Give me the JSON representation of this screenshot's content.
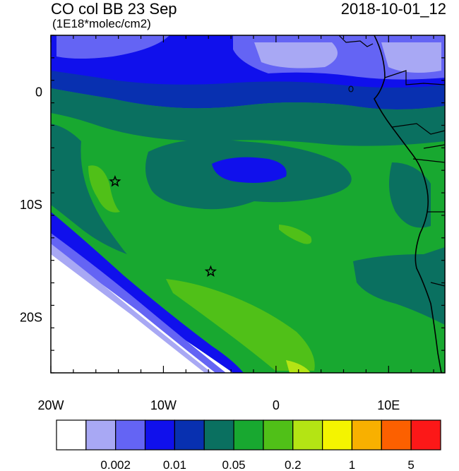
{
  "header": {
    "title": "CO col BB 23 Sep",
    "units": "(1E18*molec/cm2)",
    "timestamp": "2018-10-01_12"
  },
  "map": {
    "lon_range": [
      -20,
      15
    ],
    "lat_range": [
      -25,
      5
    ],
    "x_ticks": [
      {
        "lon": -20,
        "label": "20W"
      },
      {
        "lon": -10,
        "label": "10W"
      },
      {
        "lon": 0,
        "label": "0"
      },
      {
        "lon": 10,
        "label": "10E"
      }
    ],
    "y_ticks": [
      {
        "lat": 0,
        "label": "0"
      },
      {
        "lat": -10,
        "label": "10S"
      },
      {
        "lat": -20,
        "label": "20S"
      }
    ],
    "markers": [
      {
        "type": "star",
        "lon": -14.3,
        "lat": -8.0
      },
      {
        "type": "star",
        "lon": -5.8,
        "lat": -16.0
      }
    ]
  },
  "colorbar": {
    "colors": [
      "#ffffff",
      "#a8a8f4",
      "#6464f4",
      "#1010ec",
      "#0830b0",
      "#0a7060",
      "#18a830",
      "#50c018",
      "#b4e414",
      "#f4f400",
      "#f8b000",
      "#fc6000",
      "#fc1818"
    ],
    "labels": [
      "0.002",
      "0.01",
      "0.05",
      "0.2",
      "1",
      "5"
    ]
  },
  "legend_colors": {
    "white": "#ffffff",
    "pale_blue": "#a8a8f4",
    "light_blue": "#6464f4",
    "blue": "#1010ec",
    "dark_blue": "#0830b0",
    "teal": "#0a7060",
    "green": "#18a830",
    "light_green": "#50c018",
    "yellow_green": "#b4e414"
  }
}
